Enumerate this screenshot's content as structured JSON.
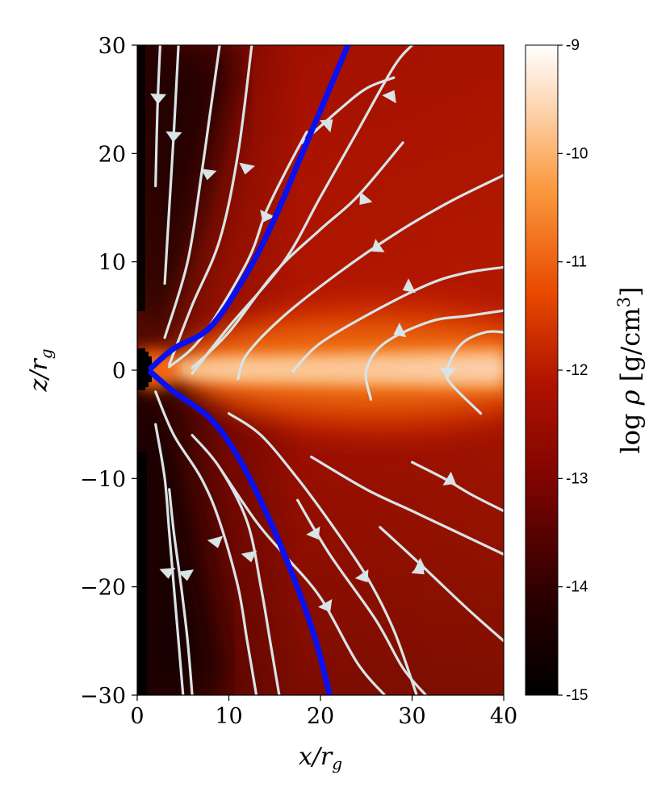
{
  "chart_data": {
    "type": "heatmap",
    "quantity": "log density with velocity streamlines",
    "xlabel": "x/r_g",
    "ylabel": "z/r_g",
    "xlim": [
      0,
      40
    ],
    "ylim": [
      -30,
      30
    ],
    "x_ticks": [
      {
        "value": 0,
        "label": "0"
      },
      {
        "value": 10,
        "label": "10"
      },
      {
        "value": 20,
        "label": "20"
      },
      {
        "value": 30,
        "label": "30"
      },
      {
        "value": 40,
        "label": "40"
      }
    ],
    "y_ticks": [
      {
        "value": 30,
        "label": "30"
      },
      {
        "value": 20,
        "label": "20"
      },
      {
        "value": 10,
        "label": "10"
      },
      {
        "value": 0,
        "label": "0"
      },
      {
        "value": -10,
        "label": "−10"
      },
      {
        "value": -20,
        "label": "−20"
      },
      {
        "value": -30,
        "label": "−30"
      }
    ],
    "colorbar": {
      "label": "log ρ [g/cm³]",
      "range": [
        -15,
        -9
      ],
      "ticks": [
        {
          "value": -9,
          "label": "-9"
        },
        {
          "value": -10,
          "label": "-10"
        },
        {
          "value": -11,
          "label": "-11"
        },
        {
          "value": -12,
          "label": "-12"
        },
        {
          "value": -13,
          "label": "-13"
        },
        {
          "value": -14,
          "label": "-14"
        },
        {
          "value": -15,
          "label": "-15"
        }
      ],
      "colormap": "gist_heat"
    },
    "funnel_boundary": {
      "color": "#0a10f0",
      "upper": [
        [
          1.5,
          0.2
        ],
        [
          4,
          2
        ],
        [
          8,
          4
        ],
        [
          12,
          9
        ],
        [
          15,
          14
        ],
        [
          18,
          20
        ],
        [
          21,
          26
        ],
        [
          23,
          30
        ]
      ],
      "lower": [
        [
          1.5,
          -0.2
        ],
        [
          4,
          -2
        ],
        [
          8,
          -4.5
        ],
        [
          11,
          -8
        ],
        [
          14,
          -13
        ],
        [
          17,
          -19
        ],
        [
          19.5,
          -25
        ],
        [
          21,
          -30
        ]
      ]
    },
    "streamline_color": "#d8e4e6",
    "streamlines": [
      {
        "points": [
          [
            2,
            17
          ],
          [
            2.2,
            24
          ],
          [
            2.5,
            30
          ]
        ],
        "arrow": [
          2.3,
          25.5
        ],
        "dir": "down"
      },
      {
        "points": [
          [
            3,
            8
          ],
          [
            3.5,
            15
          ],
          [
            4,
            22
          ],
          [
            4.5,
            30
          ]
        ],
        "arrow": [
          4,
          22
        ],
        "dir": "down"
      },
      {
        "points": [
          [
            3,
            3
          ],
          [
            5.5,
            10
          ],
          [
            7,
            18
          ],
          [
            8,
            24
          ],
          [
            9,
            30
          ]
        ],
        "arrow": [
          7.8,
          18.5
        ],
        "dir": "down"
      },
      {
        "points": [
          [
            3.5,
            0.5
          ],
          [
            6,
            6
          ],
          [
            9,
            12
          ],
          [
            11,
            20
          ],
          [
            12.5,
            30
          ]
        ],
        "arrow": [
          12,
          19
        ],
        "dir": "down"
      },
      {
        "points": [
          [
            3.5,
            0.3
          ],
          [
            7,
            3
          ],
          [
            12,
            10
          ],
          [
            14,
            14.5
          ],
          [
            16,
            18
          ],
          [
            18.5,
            22
          ]
        ],
        "arrow": [
          14.2,
          14.5
        ],
        "dir": "down"
      },
      {
        "points": [
          [
            6,
            0.2
          ],
          [
            10,
            3.5
          ],
          [
            15,
            9
          ],
          [
            20,
            13
          ],
          [
            24,
            16
          ],
          [
            29,
            21
          ]
        ],
        "arrow": [
          25,
          16
        ],
        "dir": "down"
      },
      {
        "points": [
          [
            6,
            -0.3
          ],
          [
            10,
            4
          ],
          [
            16,
            10
          ],
          [
            20,
            16
          ],
          [
            24,
            22
          ],
          [
            28,
            28
          ],
          [
            30,
            30
          ]
        ],
        "arrow": [
          27.5,
          25
        ],
        "dir": "up"
      },
      {
        "points": [
          [
            18,
            21
          ],
          [
            22,
            24
          ],
          [
            25,
            26
          ],
          [
            28,
            27
          ]
        ],
        "arrow": [
          20.5,
          22.5
        ],
        "dir": "up"
      },
      {
        "points": [
          [
            11,
            -0.8
          ],
          [
            12,
            1.5
          ],
          [
            16,
            5
          ],
          [
            22,
            9
          ],
          [
            28,
            12.5
          ],
          [
            34,
            15.5
          ],
          [
            40,
            18
          ]
        ],
        "arrow": [
          26.5,
          11.5
        ],
        "dir": "down"
      },
      {
        "points": [
          [
            17,
            -0.1
          ],
          [
            20,
            2.5
          ],
          [
            26,
            5.5
          ],
          [
            32,
            8
          ],
          [
            36,
            9
          ],
          [
            40,
            9.5
          ]
        ],
        "arrow": [
          30,
          7.8
        ],
        "dir": "down"
      },
      {
        "points": [
          [
            25.5,
            -2.7
          ],
          [
            25,
            0
          ],
          [
            27,
            2.5
          ],
          [
            32,
            4.5
          ],
          [
            36,
            5
          ],
          [
            40,
            5.5
          ]
        ],
        "arrow": [
          29,
          3.7
        ],
        "dir": "down"
      },
      {
        "points": [
          [
            37.5,
            -4
          ],
          [
            34,
            -1
          ],
          [
            34,
            0.5
          ],
          [
            35.5,
            2.5
          ],
          [
            38,
            3.5
          ],
          [
            40,
            3.5
          ]
        ],
        "arrow": [
          33.9,
          0.2
        ],
        "dir": "down"
      },
      {
        "points": [
          [
            2,
            -2
          ],
          [
            4,
            -6
          ],
          [
            7,
            -10
          ],
          [
            9,
            -14
          ],
          [
            11,
            -20
          ],
          [
            12,
            -25
          ],
          [
            13,
            -30
          ]
        ],
        "arrow": [
          8.5,
          -15.5
        ],
        "dir": "down"
      },
      {
        "points": [
          [
            2,
            -5
          ],
          [
            3,
            -10
          ],
          [
            3.5,
            -15
          ],
          [
            4,
            -20
          ],
          [
            4.5,
            -25
          ],
          [
            5,
            -30
          ]
        ],
        "arrow": [
          3.3,
          -18.3
        ],
        "dir": "down"
      },
      {
        "points": [
          [
            3.5,
            -11
          ],
          [
            4,
            -15
          ],
          [
            4.8,
            -20
          ],
          [
            5.5,
            -25
          ],
          [
            6,
            -30
          ]
        ],
        "arrow": [
          5.3,
          -18.5
        ],
        "dir": "down"
      },
      {
        "points": [
          [
            6,
            -6
          ],
          [
            9,
            -9
          ],
          [
            12,
            -14
          ],
          [
            13.5,
            -20
          ],
          [
            14.5,
            -25
          ],
          [
            15.5,
            -30
          ]
        ],
        "arrow": [
          12.2,
          -16.8
        ],
        "dir": "down"
      },
      {
        "points": [
          [
            10,
            -4
          ],
          [
            13.5,
            -6
          ],
          [
            17.5,
            -10
          ],
          [
            21,
            -14
          ],
          [
            25,
            -19
          ],
          [
            28,
            -24
          ],
          [
            30.5,
            -30
          ]
        ],
        "arrow": [
          24.5,
          -18.8
        ],
        "dir": "down"
      },
      {
        "points": [
          [
            9,
            -9
          ],
          [
            13,
            -14
          ],
          [
            16,
            -17
          ],
          [
            20,
            -21
          ],
          [
            24,
            -27
          ],
          [
            27,
            -30
          ]
        ],
        "arrow": [
          20.5,
          -21.5
        ],
        "dir": "down"
      },
      {
        "points": [
          [
            17.5,
            -12
          ],
          [
            21,
            -17
          ],
          [
            26,
            -23
          ],
          [
            29,
            -27.5
          ],
          [
            31.5,
            -30
          ]
        ],
        "arrow": [
          19.2,
          -14.8
        ],
        "dir": "down"
      },
      {
        "points": [
          [
            19,
            -8
          ],
          [
            25,
            -11
          ],
          [
            30,
            -13
          ],
          [
            35,
            -15
          ],
          [
            40,
            -17
          ]
        ],
        "arrow": [
          30.5,
          -18
        ],
        "dir": "down"
      },
      {
        "points": [
          [
            26.5,
            -14.5
          ],
          [
            31,
            -18
          ],
          [
            36,
            -22
          ],
          [
            40,
            -25
          ]
        ],
        "arrow": [
          30.5,
          -18.2
        ],
        "dir": "down"
      },
      {
        "points": [
          [
            30,
            -8.5
          ],
          [
            33.5,
            -10
          ],
          [
            36.5,
            -11.5
          ],
          [
            40,
            -13
          ]
        ],
        "arrow": [
          33.8,
          -10
        ],
        "dir": "down"
      }
    ]
  }
}
